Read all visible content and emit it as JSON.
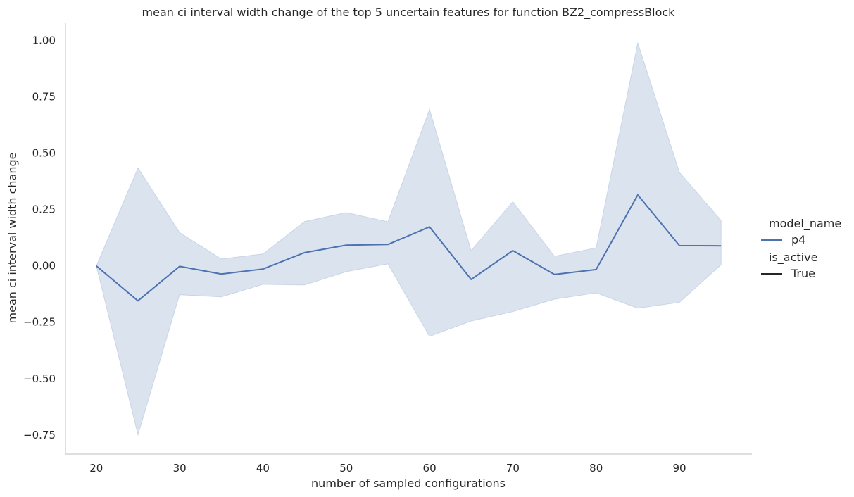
{
  "chart_data": {
    "type": "line",
    "title": "mean ci interval width change of the top 5 uncertain features for function BZ2_compressBlock",
    "xlabel": "number of sampled configurations",
    "ylabel": "mean ci interval width change",
    "xlim": [
      16.3,
      98.7
    ],
    "ylim": [
      -0.835,
      1.08
    ],
    "xticks": [
      20,
      30,
      40,
      50,
      60,
      70,
      80,
      90
    ],
    "xtick_labels": [
      "20",
      "30",
      "40",
      "50",
      "60",
      "70",
      "80",
      "90"
    ],
    "yticks": [
      -0.75,
      -0.5,
      -0.25,
      0.0,
      0.25,
      0.5,
      0.75,
      1.0
    ],
    "ytick_labels": [
      "−0.75",
      "−0.50",
      "−0.25",
      "0.00",
      "0.25",
      "0.50",
      "0.75",
      "1.00"
    ],
    "grid": false,
    "legend_position": "right",
    "legend": {
      "hue_title": "model_name",
      "hue_entries": [
        "p4"
      ],
      "style_title": "is_active",
      "style_entries": [
        "True"
      ]
    },
    "series": [
      {
        "name": "p4",
        "color": "#4c72b0",
        "x": [
          20,
          25,
          30,
          35,
          40,
          45,
          50,
          55,
          60,
          65,
          70,
          75,
          80,
          85,
          90,
          95
        ],
        "y": [
          0.0,
          -0.155,
          -0.002,
          -0.036,
          -0.014,
          0.059,
          0.092,
          0.095,
          0.173,
          -0.06,
          0.068,
          -0.038,
          -0.016,
          0.315,
          0.09,
          0.089
        ],
        "ci_upper": [
          0.0,
          0.435,
          0.148,
          0.031,
          0.053,
          0.197,
          0.237,
          0.196,
          0.695,
          0.068,
          0.285,
          0.043,
          0.08,
          0.99,
          0.415,
          0.202
        ],
        "ci_lower": [
          0.0,
          -0.75,
          -0.128,
          -0.138,
          -0.082,
          -0.085,
          -0.026,
          0.009,
          -0.313,
          -0.245,
          -0.203,
          -0.148,
          -0.12,
          -0.188,
          -0.162,
          0.005
        ]
      }
    ]
  }
}
